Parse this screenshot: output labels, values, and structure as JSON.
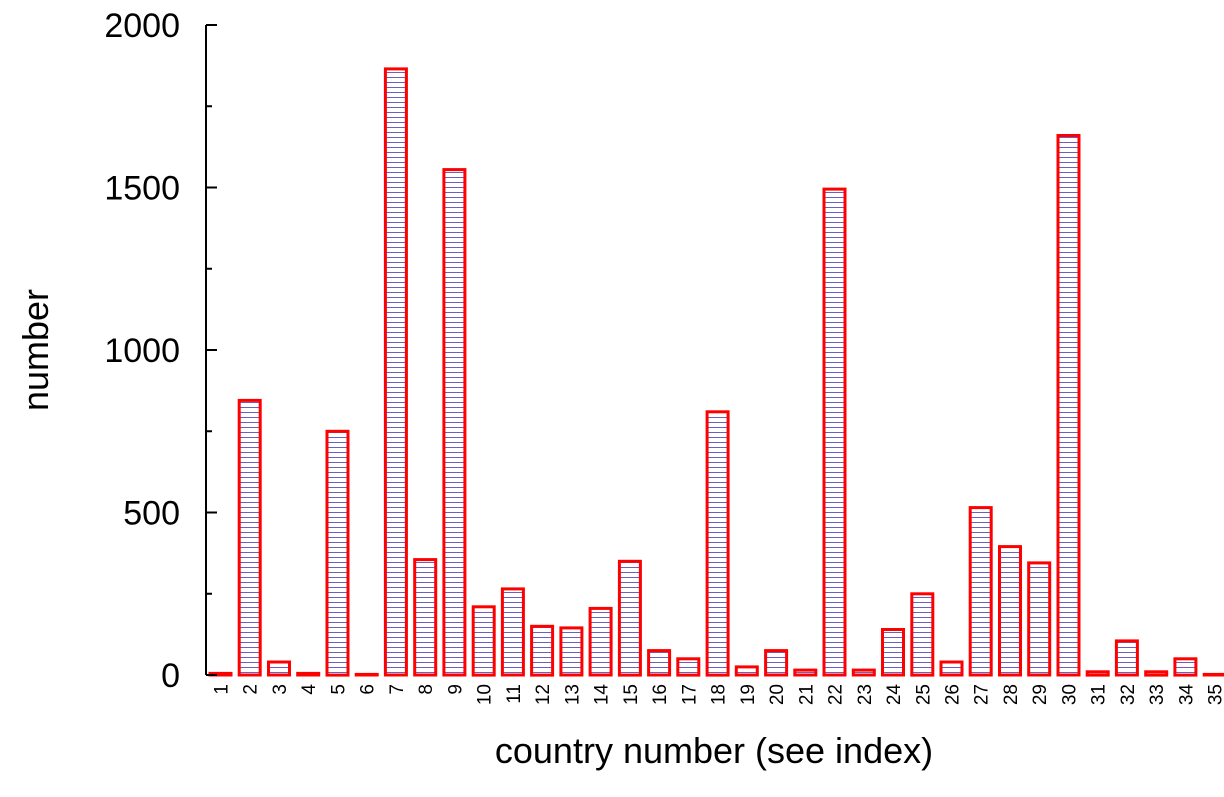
{
  "chart_data": {
    "type": "bar",
    "title": "",
    "xlabel": "country number (see index)",
    "ylabel": "number",
    "ylim": [
      0,
      2000
    ],
    "yticks": [
      0,
      500,
      1000,
      1500,
      2000
    ],
    "categories": [
      "1",
      "2",
      "3",
      "4",
      "5",
      "6",
      "7",
      "8",
      "9",
      "10",
      "11",
      "12",
      "13",
      "14",
      "15",
      "16",
      "17",
      "18",
      "19",
      "20",
      "21",
      "22",
      "23",
      "24",
      "25",
      "26",
      "27",
      "28",
      "29",
      "30",
      "31",
      "32",
      "33",
      "34",
      "35"
    ],
    "values": [
      5,
      845,
      40,
      5,
      750,
      2,
      1865,
      355,
      1555,
      210,
      265,
      150,
      145,
      205,
      350,
      75,
      50,
      810,
      25,
      75,
      15,
      1495,
      15,
      140,
      250,
      40,
      515,
      395,
      345,
      1660,
      10,
      105,
      10,
      50,
      2
    ],
    "grid": false,
    "legend": "none",
    "colors": {
      "bar_edge": "#ff0000",
      "bar_hatch": "#6b5fbf",
      "bar_fill": "#ffffff",
      "axis": "#000000"
    }
  }
}
